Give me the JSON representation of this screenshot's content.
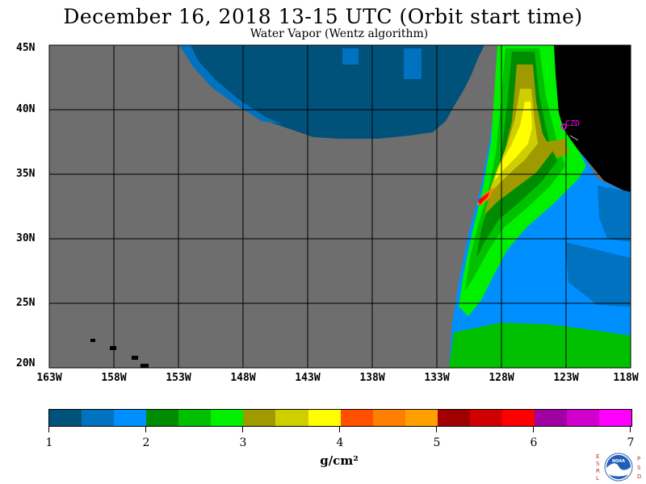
{
  "header": {
    "title": "December 16, 2018  13-15 UTC  (Orbit start time)",
    "subtitle": "Water Vapor (Wentz algorithm)"
  },
  "map": {
    "projection": "lat-lon",
    "lon_range": [
      -163,
      -118
    ],
    "lat_range": [
      20,
      45
    ],
    "lat_labels": [
      "45N",
      "40N",
      "35N",
      "30N",
      "25N",
      "20N"
    ],
    "lon_labels": [
      "163W",
      "158W",
      "153W",
      "148W",
      "143W",
      "138W",
      "133W",
      "128W",
      "123W",
      "118W"
    ],
    "station_label": "CZD",
    "colors": {
      "no_data": "#6e6e6e",
      "land": "#000000",
      "grid": "#000000",
      "station": "#ff00ff"
    }
  },
  "colorbar": {
    "units": "g/cm²",
    "tick_labels": [
      "1",
      "2",
      "3",
      "4",
      "5",
      "6",
      "7"
    ],
    "colors": [
      "#00527a",
      "#0072c0",
      "#008fff",
      "#008c00",
      "#00c000",
      "#00f000",
      "#9f9a00",
      "#cfcf00",
      "#ffff00",
      "#ff5000",
      "#ff8000",
      "#ffa000",
      "#a00000",
      "#d00000",
      "#ff0000",
      "#a0009f",
      "#d000cf",
      "#ff00ff"
    ]
  },
  "logo": {
    "left_letters": "ESRL",
    "right_letters": "PSD",
    "center_text": "NOAA"
  }
}
